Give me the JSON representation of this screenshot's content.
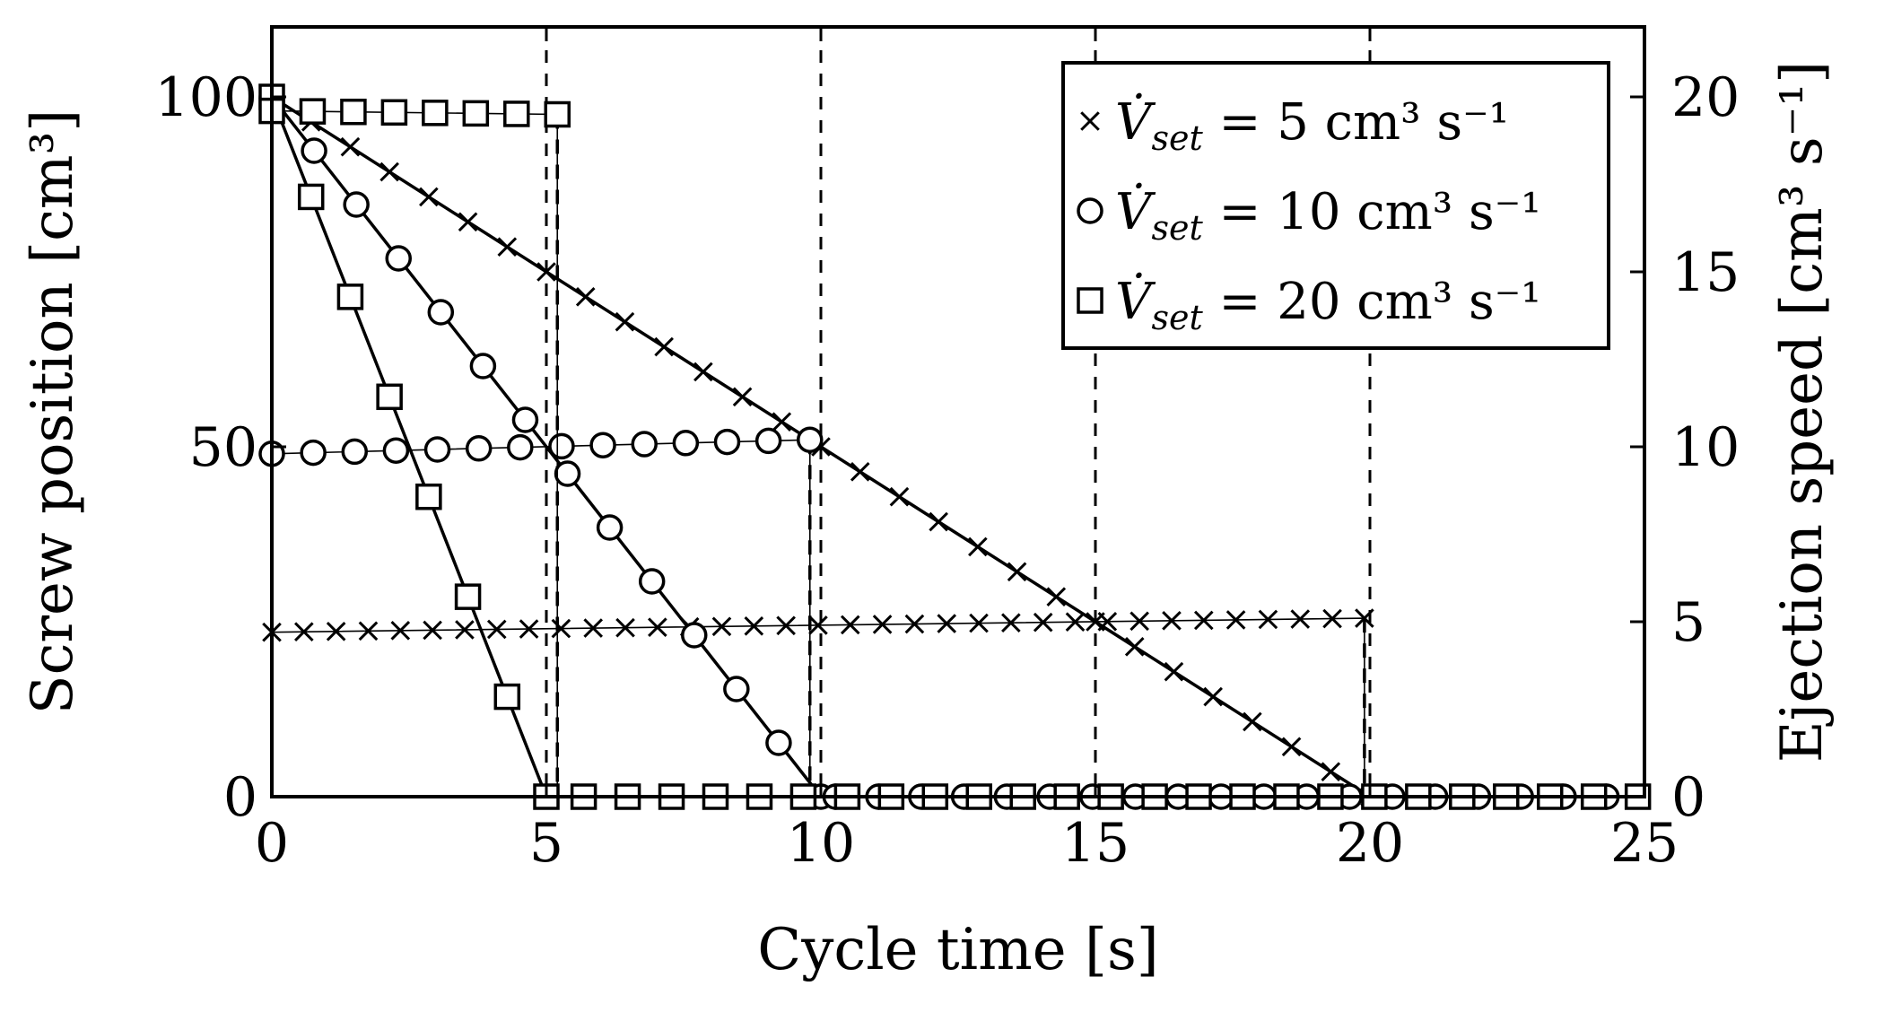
{
  "chart_data": {
    "type": "line",
    "xlabel": "Cycle time [s]",
    "ylabel_left": "Screw position [cm³]",
    "ylabel_right": "Ejection speed [cm³ s⁻¹]",
    "xlim": [
      0,
      25
    ],
    "ylim_left": [
      0,
      100
    ],
    "ylim_right": [
      0,
      20
    ],
    "x_ticks": [
      "0",
      "5",
      "10",
      "15",
      "20",
      "25"
    ],
    "y_left_ticks": [
      "0",
      "50",
      "100"
    ],
    "y_right_ticks": [
      "0",
      "5",
      "10",
      "15",
      "20"
    ],
    "grid": "x dashed",
    "legend": {
      "placement": "top-right",
      "entries": [
        {
          "marker": "x",
          "var": "V̇",
          "sub": "set",
          "rest": " = 5 cm³ s⁻¹"
        },
        {
          "marker": "circle",
          "var": "V̇",
          "sub": "set",
          "rest": " = 10 cm³ s⁻¹"
        },
        {
          "marker": "square",
          "var": "V̇",
          "sub": "set",
          "rest": " = 20 cm³ s⁻¹"
        }
      ]
    },
    "series": [
      {
        "set_speed": 5,
        "marker": "x",
        "screw_position": {
          "axis": "left",
          "x": [
            0,
            20,
            25
          ],
          "y": [
            100,
            0,
            0
          ]
        },
        "ejection_speed": {
          "axis": "right",
          "x": [
            0,
            19.9,
            19.9,
            25
          ],
          "y": [
            4.7,
            5.1,
            0,
            0
          ]
        }
      },
      {
        "set_speed": 10,
        "marker": "circle",
        "screw_position": {
          "axis": "left",
          "x": [
            0,
            10,
            25
          ],
          "y": [
            100,
            0,
            0
          ]
        },
        "ejection_speed": {
          "axis": "right",
          "x": [
            0,
            9.8,
            9.8,
            25
          ],
          "y": [
            9.8,
            10.2,
            0,
            0
          ]
        }
      },
      {
        "set_speed": 20,
        "marker": "square",
        "screw_position": {
          "axis": "left",
          "x": [
            0,
            5,
            25
          ],
          "y": [
            100,
            0,
            0
          ]
        },
        "ejection_speed": {
          "axis": "right",
          "x": [
            0,
            5.2,
            5.2,
            25
          ],
          "y": [
            19.6,
            19.5,
            0,
            0
          ]
        }
      }
    ]
  }
}
